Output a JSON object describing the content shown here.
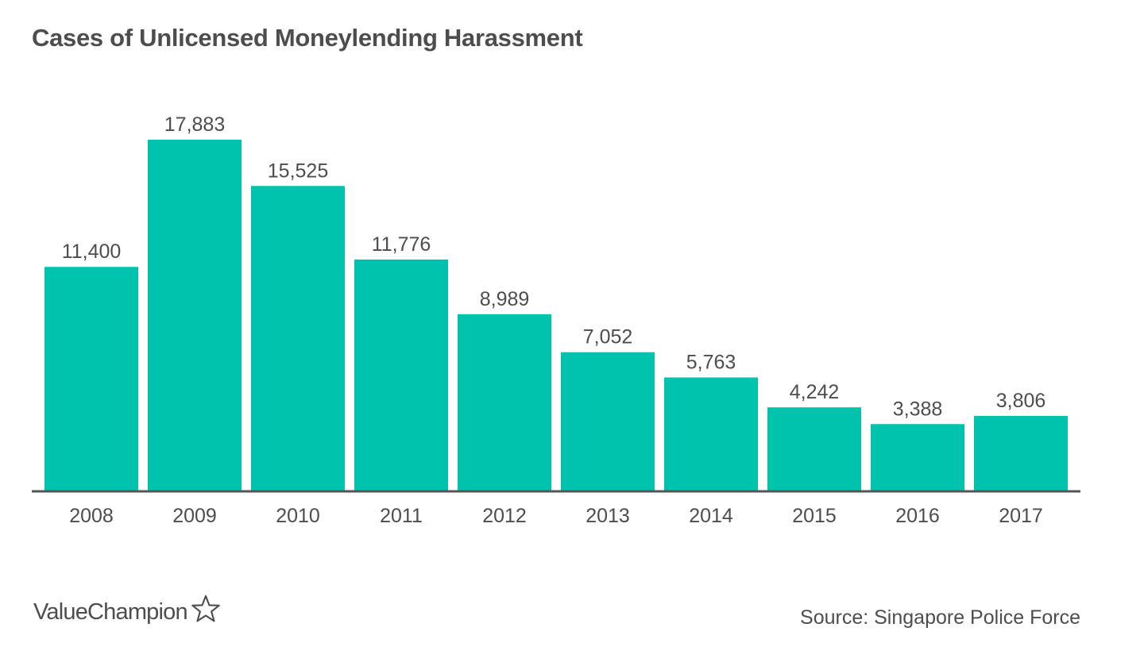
{
  "chart_data": {
    "type": "bar",
    "title": "Cases of Unlicensed Moneylending Harassment",
    "categories": [
      "2008",
      "2009",
      "2010",
      "2011",
      "2012",
      "2013",
      "2014",
      "2015",
      "2016",
      "2017"
    ],
    "values": [
      11400,
      17883,
      15525,
      11776,
      8989,
      7052,
      5763,
      4242,
      3388,
      3806
    ],
    "value_labels": [
      "11,400",
      "17,883",
      "15,525",
      "11,776",
      "8,989",
      "7,052",
      "5,763",
      "4,242",
      "3,388",
      "3,806"
    ],
    "xlabel": "",
    "ylabel": "",
    "ylim": [
      0,
      17883
    ],
    "grid": false,
    "bar_color": "#00c3ae",
    "axis_color": "#555555",
    "text_color": "#4d4d4d"
  },
  "branding": {
    "logo_text": "ValueChampion",
    "logo_icon": "star-outline-icon"
  },
  "source": "Source: Singapore Police Force"
}
